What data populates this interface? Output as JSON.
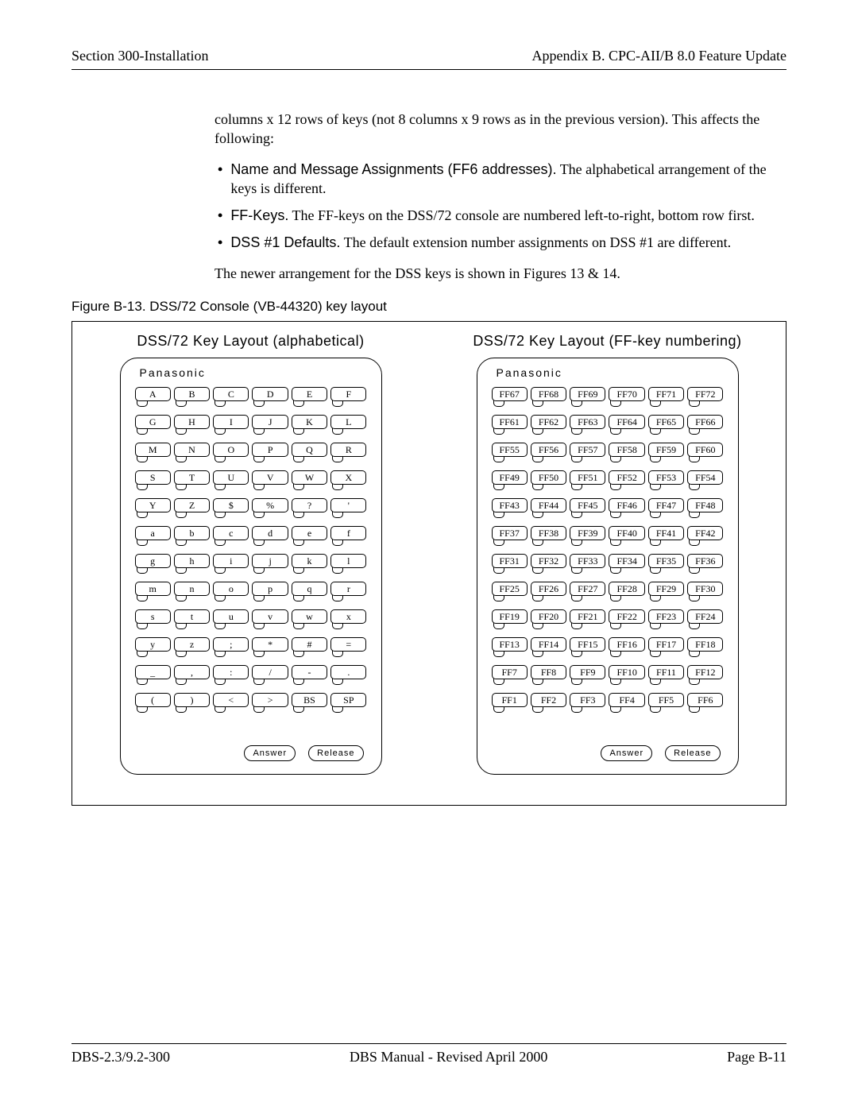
{
  "header": {
    "left": "Section 300-Installation",
    "right": "Appendix B. CPC-AII/B 8.0 Feature Update"
  },
  "body": {
    "intro": "columns x 12 rows of keys (not 8 columns x 9 rows as in the previous version). This affects the following:",
    "bullets": [
      {
        "lead": "Name and Message Assignments (FF6 addresses).",
        "rest": "The alphabetical arrangement of the keys is different."
      },
      {
        "lead": "FF-Keys.",
        "rest": "The FF-keys on the DSS/72 console are numbered left-to-right, bottom row first."
      },
      {
        "lead": "DSS #1 Defaults.",
        "rest": "The default extension number assignments on DSS #1 are different."
      }
    ],
    "outro": "The newer arrangement for the DSS keys is shown in Figures 13 & 14."
  },
  "figure": {
    "caption": "Figure B-13. DSS/72 Console (VB-44320) key layout",
    "left_title": "DSS/72 Key Layout (alphabetical)",
    "right_title": "DSS/72 Key Layout (FF-key numbering)",
    "brand": "Panasonic",
    "answer": "Answer",
    "release": "Release",
    "alpha_rows": [
      [
        "A",
        "B",
        "C",
        "D",
        "E",
        "F"
      ],
      [
        "G",
        "H",
        "I",
        "J",
        "K",
        "L"
      ],
      [
        "M",
        "N",
        "O",
        "P",
        "Q",
        "R"
      ],
      [
        "S",
        "T",
        "U",
        "V",
        "W",
        "X"
      ],
      [
        "Y",
        "Z",
        "$",
        "%",
        "?",
        "'"
      ],
      [
        "a",
        "b",
        "c",
        "d",
        "e",
        "f"
      ],
      [
        "g",
        "h",
        "i",
        "j",
        "k",
        "l"
      ],
      [
        "m",
        "n",
        "o",
        "p",
        "q",
        "r"
      ],
      [
        "s",
        "t",
        "u",
        "v",
        "w",
        "x"
      ],
      [
        "y",
        "z",
        ";",
        "*",
        "#",
        "="
      ],
      [
        "_",
        ",",
        ":",
        "/",
        "-",
        "."
      ],
      [
        "(",
        ")",
        "<",
        ">",
        "BS",
        "SP"
      ]
    ],
    "ff_rows": [
      [
        "FF67",
        "FF68",
        "FF69",
        "FF70",
        "FF71",
        "FF72"
      ],
      [
        "FF61",
        "FF62",
        "FF63",
        "FF64",
        "FF65",
        "FF66"
      ],
      [
        "FF55",
        "FF56",
        "FF57",
        "FF58",
        "FF59",
        "FF60"
      ],
      [
        "FF49",
        "FF50",
        "FF51",
        "FF52",
        "FF53",
        "FF54"
      ],
      [
        "FF43",
        "FF44",
        "FF45",
        "FF46",
        "FF47",
        "FF48"
      ],
      [
        "FF37",
        "FF38",
        "FF39",
        "FF40",
        "FF41",
        "FF42"
      ],
      [
        "FF31",
        "FF32",
        "FF33",
        "FF34",
        "FF35",
        "FF36"
      ],
      [
        "FF25",
        "FF26",
        "FF27",
        "FF28",
        "FF29",
        "FF30"
      ],
      [
        "FF19",
        "FF20",
        "FF21",
        "FF22",
        "FF23",
        "FF24"
      ],
      [
        "FF13",
        "FF14",
        "FF15",
        "FF16",
        "FF17",
        "FF18"
      ],
      [
        "FF7",
        "FF8",
        "FF9",
        "FF10",
        "FF11",
        "FF12"
      ],
      [
        "FF1",
        "FF2",
        "FF3",
        "FF4",
        "FF5",
        "FF6"
      ]
    ]
  },
  "footer": {
    "left": "DBS-2.3/9.2-300",
    "center": "DBS Manual - Revised April 2000",
    "right": "Page B-11"
  },
  "colors": {
    "text": "#000000",
    "bg": "#ffffff",
    "rule": "#000000"
  }
}
